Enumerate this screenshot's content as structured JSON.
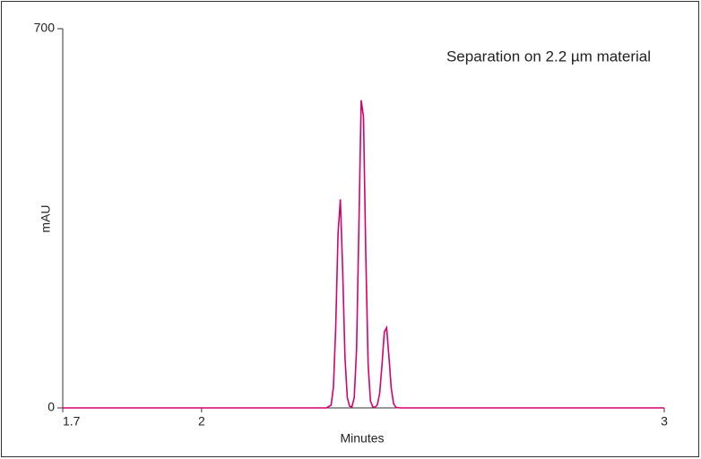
{
  "chart_data": {
    "type": "line",
    "annotation": "Separation on 2.2 µm material",
    "xlabel": "Minutes",
    "ylabel": "mAU",
    "x": [
      1.7,
      2.25,
      2.27,
      2.28,
      2.285,
      2.29,
      2.295,
      2.3,
      2.305,
      2.31,
      2.315,
      2.32,
      2.325,
      2.33,
      2.335,
      2.34,
      2.345,
      2.35,
      2.355,
      2.36,
      2.365,
      2.37,
      2.375,
      2.38,
      2.385,
      2.39,
      2.395,
      2.4,
      2.405,
      2.41,
      2.415,
      2.42,
      2.43,
      3
    ],
    "values": [
      0,
      0,
      0,
      5,
      38,
      149,
      322,
      385,
      254,
      93,
      19,
      3,
      2,
      19,
      108,
      333,
      568,
      537,
      281,
      81,
      13,
      2,
      1,
      6,
      27,
      80,
      140,
      148,
      94,
      36,
      8,
      1,
      0,
      0
    ],
    "color": "#d6006f",
    "xlim": [
      1.7,
      3
    ],
    "ylim": [
      0,
      700
    ],
    "xticks": [
      1.7,
      2,
      3
    ],
    "yticks": [
      0,
      700
    ]
  }
}
